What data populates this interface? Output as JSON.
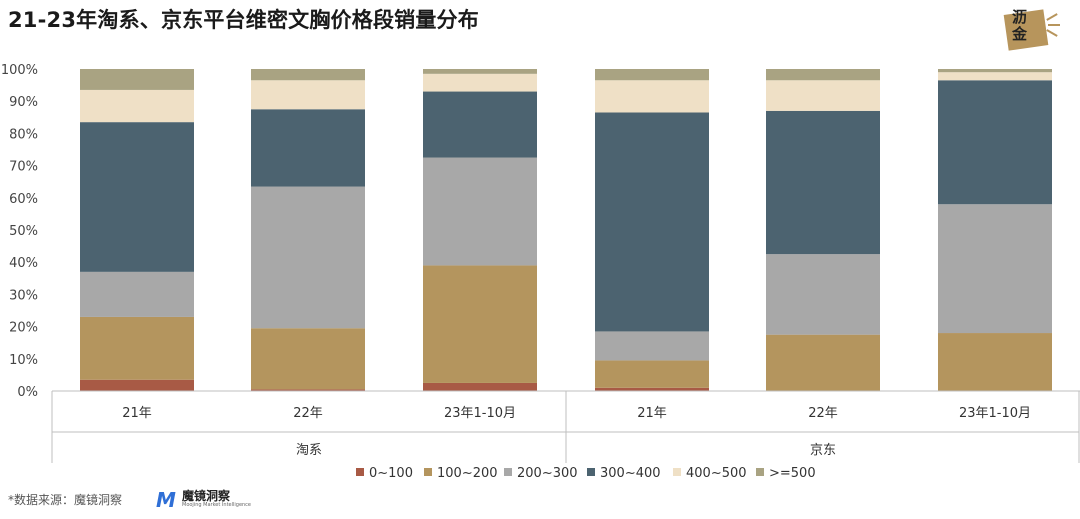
{
  "page": {
    "title": "21-23年淘系、京东平台维密文胸价格段销量分布",
    "source": "*数据来源：魔镜洞察",
    "logo_text": "沥\n金",
    "brand_mark": "M",
    "brand_name": "魔镜洞察",
    "brand_sub": "Moojing Market Intelligence"
  },
  "chart_data": {
    "type": "bar",
    "stacked": true,
    "percent": true,
    "title": "21-23年淘系、京东平台维密文胸价格段销量分布",
    "ylim": [
      0,
      100
    ],
    "yticks": [
      "0%",
      "10%",
      "20%",
      "30%",
      "40%",
      "50%",
      "60%",
      "70%",
      "80%",
      "90%",
      "100%"
    ],
    "groups": [
      {
        "name": "淘系",
        "categories": [
          "21年",
          "22年",
          "23年1-10月"
        ]
      },
      {
        "name": "京东",
        "categories": [
          "21年",
          "22年",
          "23年1-10月"
        ]
      }
    ],
    "legend_position": "bottom",
    "series": [
      {
        "name": "0~100",
        "color": "#a85a45",
        "values": [
          3.5,
          0.5,
          2.5,
          1.0,
          0.0,
          0.0
        ]
      },
      {
        "name": "100~200",
        "color": "#b4955e",
        "values": [
          19.5,
          19.0,
          36.5,
          8.5,
          17.5,
          18.0
        ]
      },
      {
        "name": "200~300",
        "color": "#a8a8a8",
        "values": [
          14.0,
          44.0,
          33.5,
          9.0,
          25.0,
          40.0
        ]
      },
      {
        "name": "300~400",
        "color": "#4c6370",
        "values": [
          46.5,
          24.0,
          20.5,
          68.0,
          44.5,
          38.5
        ]
      },
      {
        "name": "400~500",
        "color": "#efe0c6",
        "values": [
          10.0,
          9.0,
          5.5,
          10.0,
          9.5,
          2.5
        ]
      },
      {
        "name": ">=500",
        "color": "#a9a382",
        "values": [
          6.5,
          3.5,
          1.5,
          3.5,
          3.5,
          1.0
        ]
      }
    ]
  }
}
